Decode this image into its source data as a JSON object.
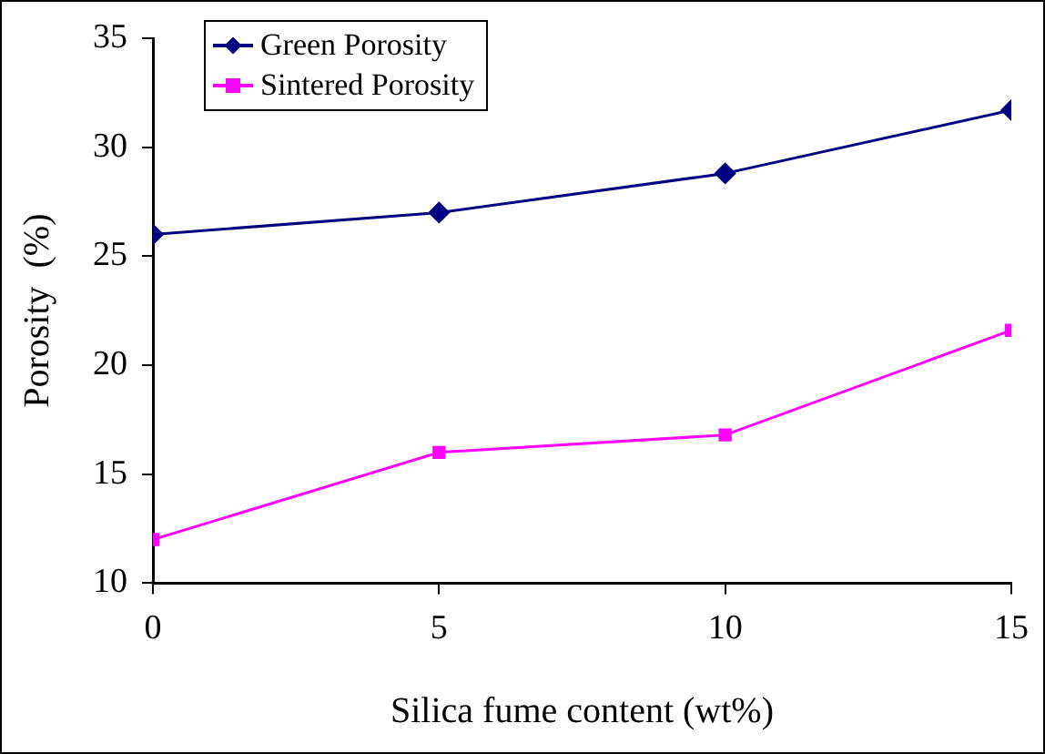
{
  "chart_data": {
    "type": "line",
    "xlabel": "Silica fume content (wt%)",
    "ylabel": "Porosity  (%)",
    "x": [
      0,
      5,
      10,
      15
    ],
    "series": [
      {
        "name": "Green Porosity",
        "color": "#000080",
        "marker": "diamond",
        "values": [
          26.0,
          27.0,
          28.8,
          31.7
        ]
      },
      {
        "name": "Sintered Porosity",
        "color": "#ff00ff",
        "marker": "square",
        "values": [
          12.0,
          16.0,
          16.8,
          21.6
        ]
      }
    ],
    "xlim": [
      0,
      15
    ],
    "xticks": [
      0,
      5,
      10,
      15
    ],
    "ylim": [
      10,
      35
    ],
    "yticks": [
      10,
      15,
      20,
      25,
      30,
      35
    ],
    "grid": false,
    "legend": "top left"
  }
}
